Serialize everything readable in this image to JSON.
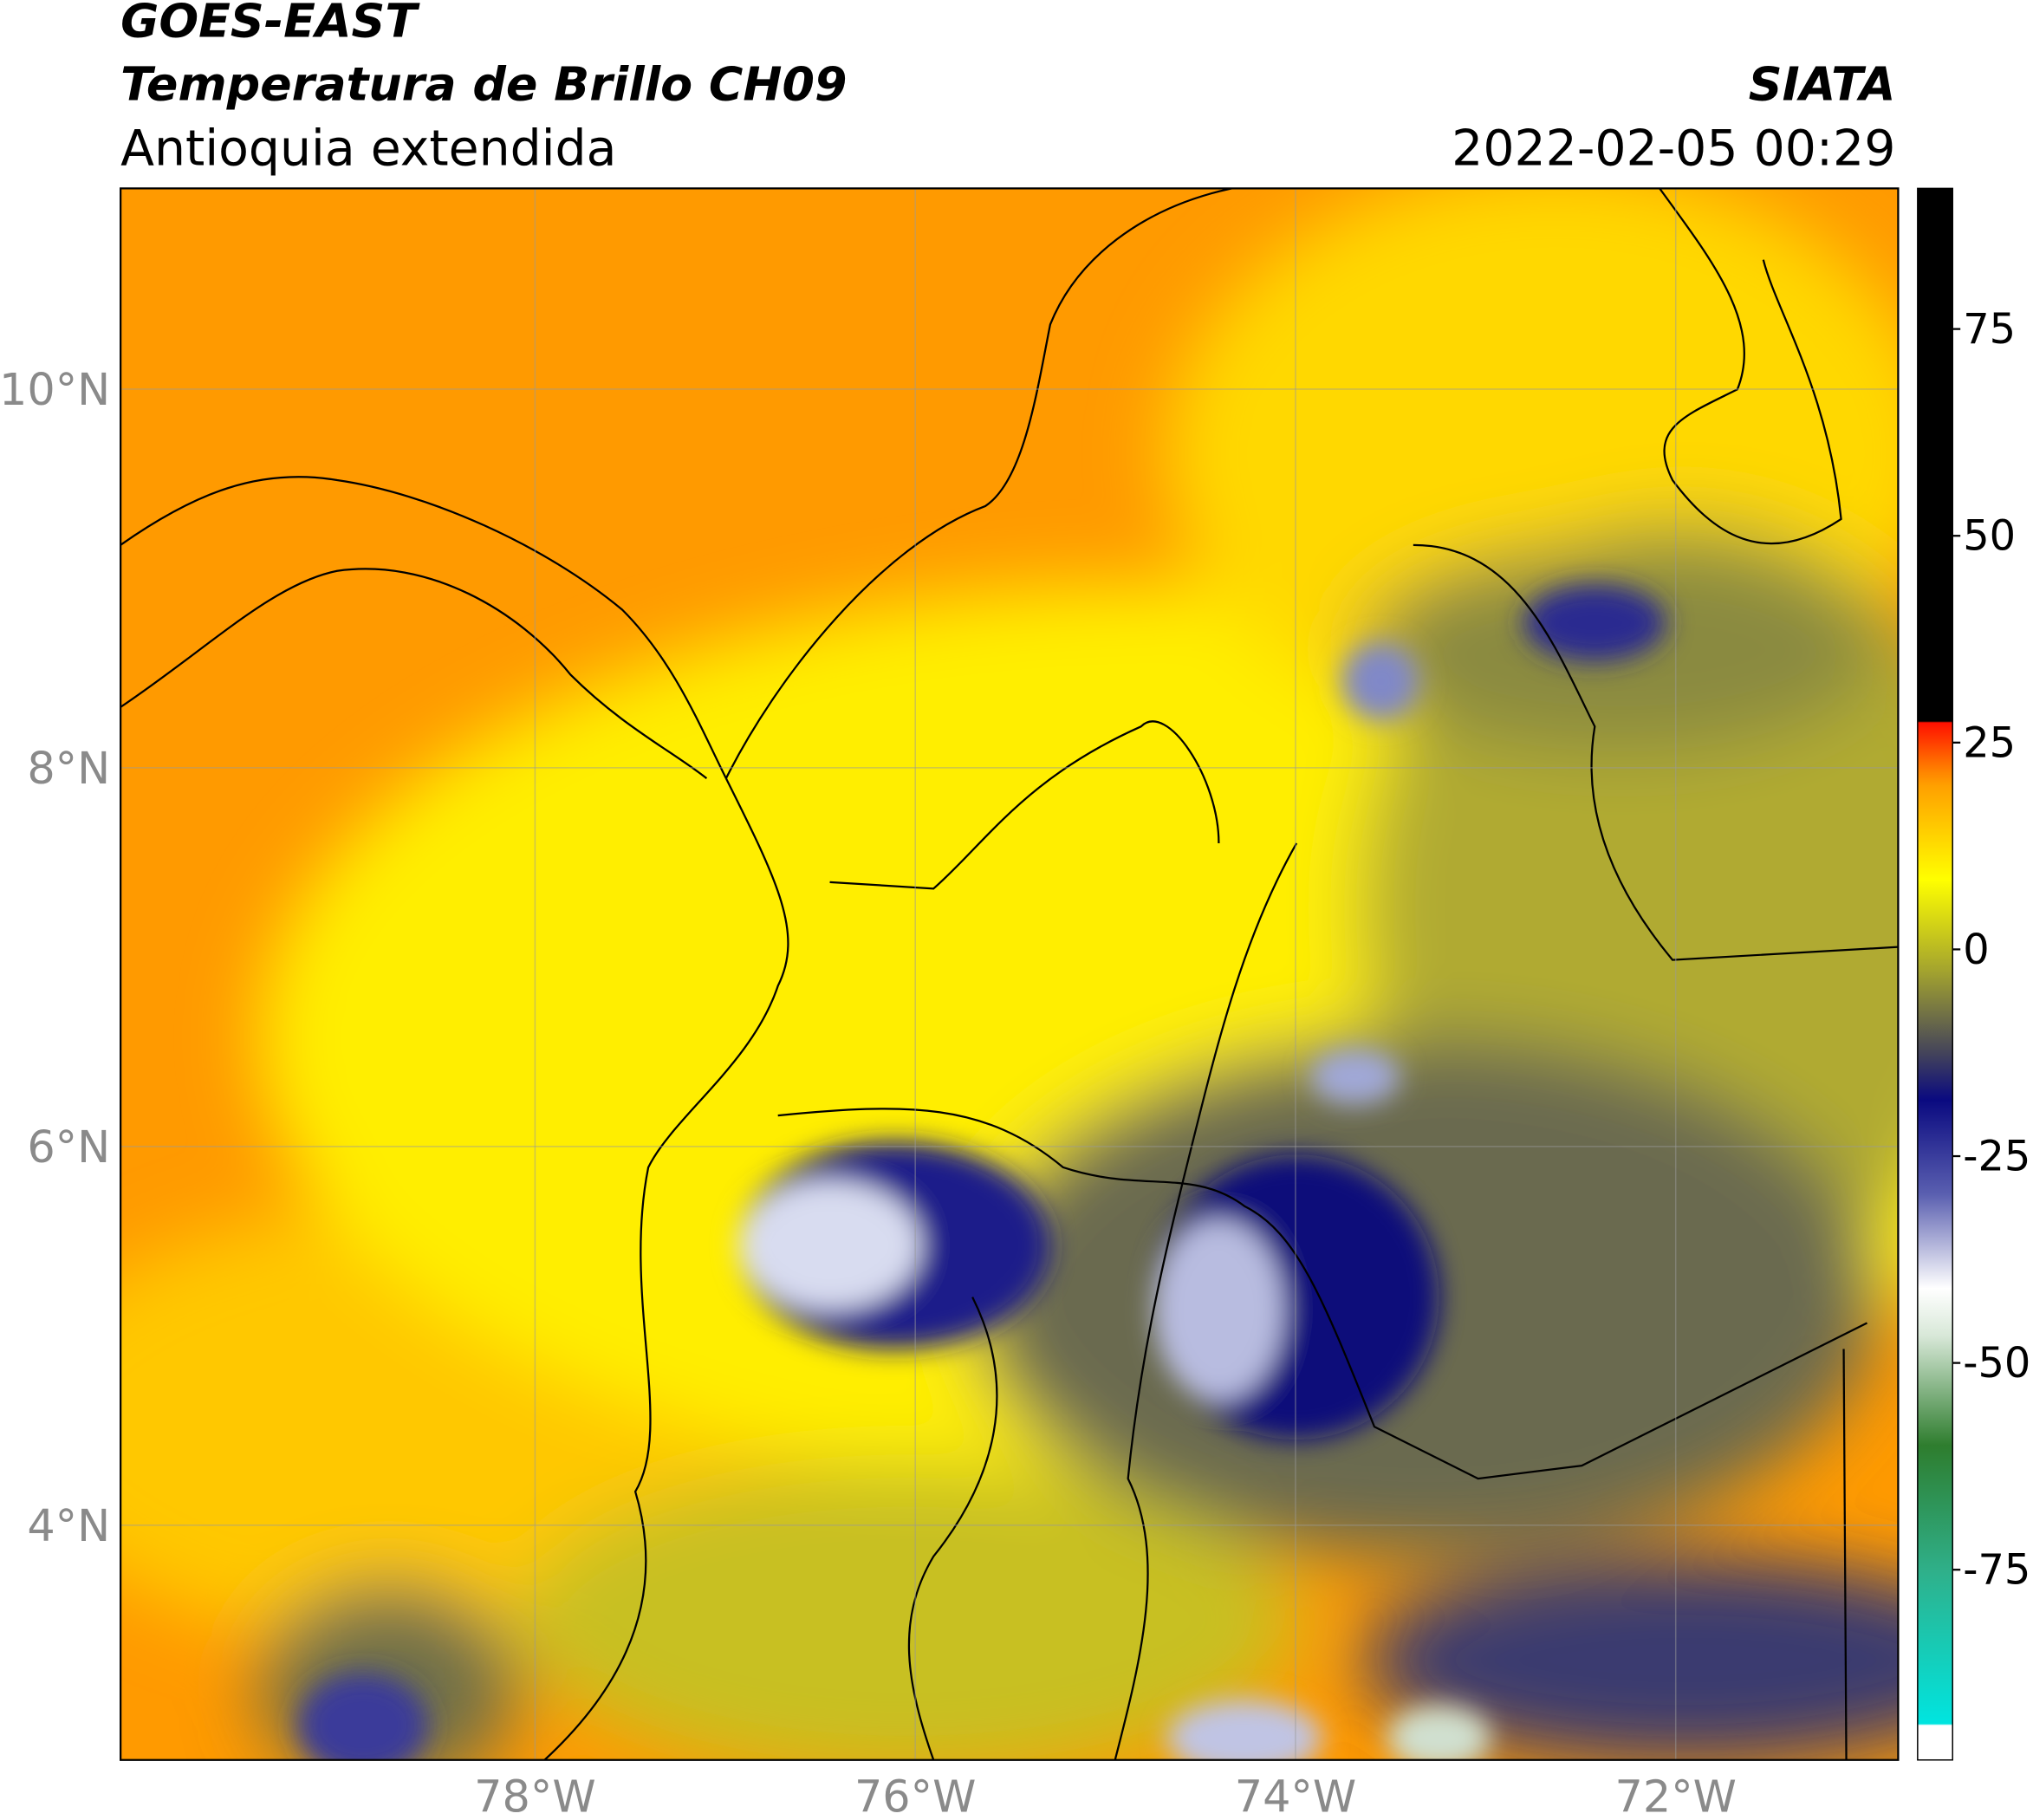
{
  "header": {
    "satellite": "GOES-EAST",
    "title": "Temperatura de Brillo CH09",
    "region": "Antioquia extendida",
    "source": "SIATA",
    "datetime": "2022-02-05 00:29"
  },
  "map": {
    "xlim": [
      -80.18,
      -70.83
    ],
    "ylim": [
      2.76,
      11.06
    ],
    "xticks": [
      {
        "value": -78,
        "label": "78°W"
      },
      {
        "value": -76,
        "label": "76°W"
      },
      {
        "value": -74,
        "label": "74°W"
      },
      {
        "value": -72,
        "label": "72°W"
      }
    ],
    "yticks": [
      {
        "value": 4,
        "label": "4°N"
      },
      {
        "value": 6,
        "label": "6°N"
      },
      {
        "value": 8,
        "label": "8°N"
      },
      {
        "value": 10,
        "label": "10°N"
      }
    ],
    "grid": true
  },
  "colorbar": {
    "lim": [
      -98,
      92
    ],
    "ticks": [
      -75,
      -50,
      -25,
      0,
      25,
      50,
      75
    ]
  }
}
